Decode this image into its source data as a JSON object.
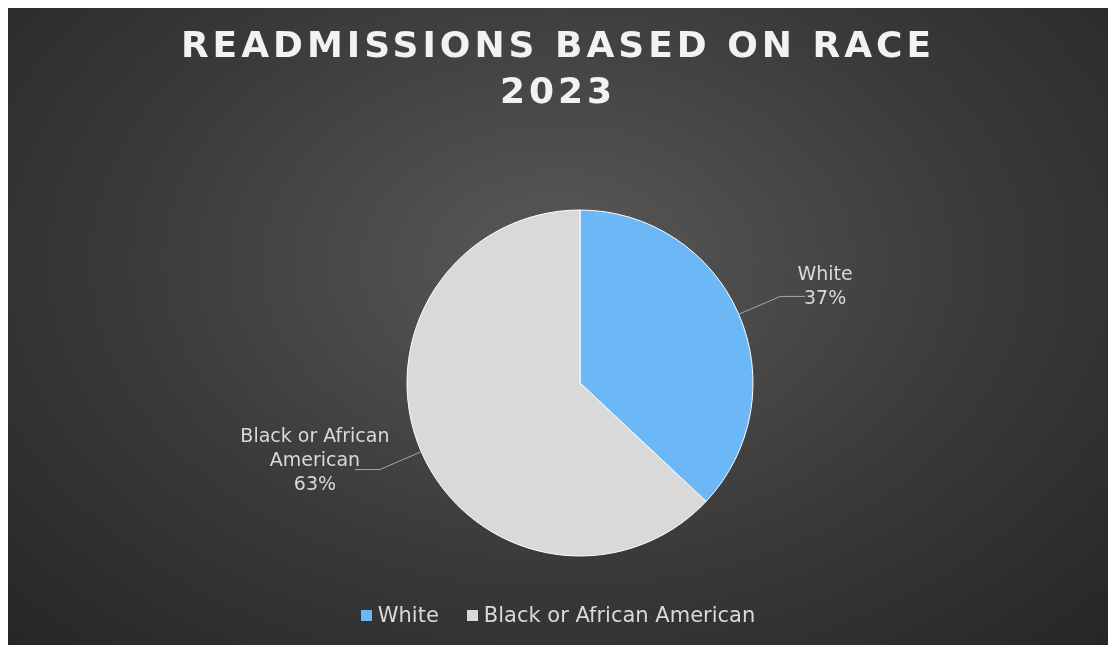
{
  "chart_data": {
    "type": "pie",
    "title": "READMISSIONS BASED ON RACE 2023",
    "categories": [
      "White",
      "Black or African American"
    ],
    "values": [
      37,
      63
    ],
    "colors": [
      "#6cb8f6",
      "#d9d9d9"
    ],
    "value_labels": [
      "37%",
      "63%"
    ],
    "legend": "bottom"
  }
}
